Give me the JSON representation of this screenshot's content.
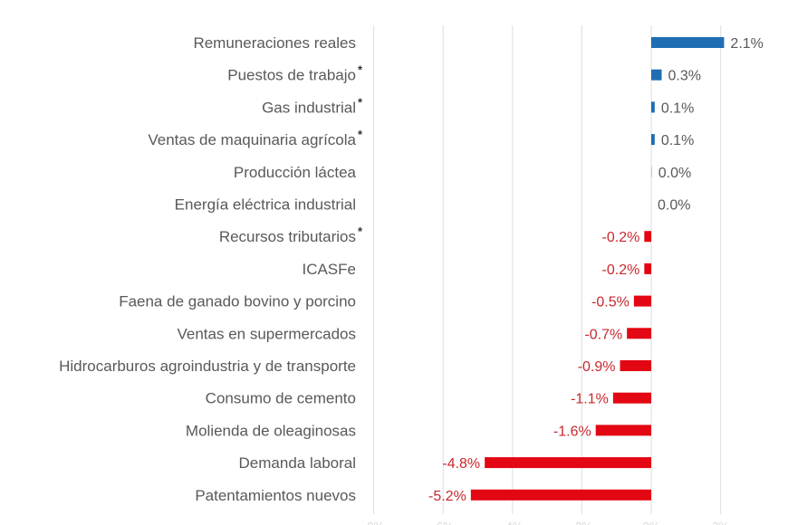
{
  "chart_data": {
    "type": "bar",
    "orientation": "horizontal",
    "title": "",
    "xlabel": "",
    "ylabel": "",
    "xlim": [
      -8,
      2
    ],
    "grid": true,
    "x_ticks": [
      -8,
      -6,
      -4,
      -2,
      0,
      2
    ],
    "tick_labels_visible": false,
    "value_format": "percent_1dp",
    "colors": {
      "positive": "#1f6eb4",
      "negative": "#e30613",
      "negative_label": "#c8282d",
      "label": "#595959"
    },
    "categories": [
      {
        "label": "Remuneraciones reales",
        "starred": false
      },
      {
        "label": "Puestos de trabajo",
        "starred": true
      },
      {
        "label": "Gas industrial",
        "starred": true
      },
      {
        "label": "Ventas de maquinaria agrícola",
        "starred": true
      },
      {
        "label": "Producción láctea",
        "starred": false
      },
      {
        "label": "Energía eléctrica industrial",
        "starred": false
      },
      {
        "label": "Recursos tributarios",
        "starred": true
      },
      {
        "label": "ICASFe",
        "starred": false
      },
      {
        "label": "Faena de ganado bovino y porcino",
        "starred": false
      },
      {
        "label": "Ventas en supermercados",
        "starred": false
      },
      {
        "label": "Hidrocarburos agroindustria y de transporte",
        "starred": false
      },
      {
        "label": "Consumo de cemento",
        "starred": false
      },
      {
        "label": "Molienda de oleaginosas",
        "starred": false
      },
      {
        "label": "Demanda laboral",
        "starred": false
      },
      {
        "label": "Patentamientos nuevos",
        "starred": false
      }
    ],
    "values": [
      2.1,
      0.3,
      0.1,
      0.1,
      0.02,
      0.0,
      -0.2,
      -0.2,
      -0.5,
      -0.7,
      -0.9,
      -1.1,
      -1.6,
      -4.8,
      -5.2
    ],
    "data_labels": [
      "2.1%",
      "0.3%",
      "0.1%",
      "0.1%",
      "0.0%",
      "0.0%",
      "-0.2%",
      "-0.2%",
      "-0.5%",
      "-0.7%",
      "-0.9%",
      "-1.1%",
      "-1.6%",
      "-4.8%",
      "-5.2%"
    ],
    "star_marker": "*"
  }
}
